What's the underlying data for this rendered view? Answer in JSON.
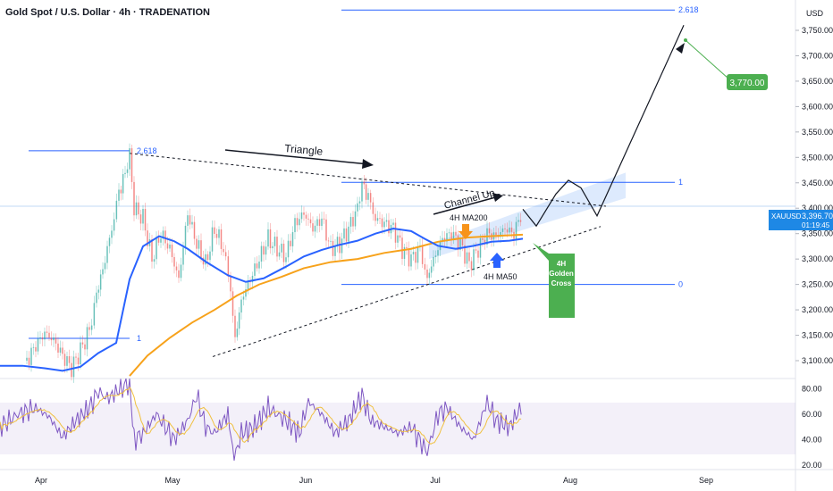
{
  "header": {
    "title": "Gold Spot / U.S. Dollar · 4h · TRADENATION",
    "currency": "USD"
  },
  "chart_data": {
    "type": "line",
    "price_axis": {
      "ylim": [
        3050,
        3810
      ],
      "ticks": [
        "3,100.00",
        "3,150.00",
        "3,200.00",
        "3,250.00",
        "3,300.00",
        "3,350.00",
        "3,400.00",
        "3,450.00",
        "3,500.00",
        "3,550.00",
        "3,600.00",
        "3,650.00",
        "3,700.00",
        "3,750.00"
      ]
    },
    "rsi_axis": {
      "ylim": [
        20,
        88
      ],
      "ticks": [
        "20.00",
        "40.00",
        "60.00",
        "80.00"
      ]
    },
    "x_ticks": [
      "Apr",
      "May",
      "Jun",
      "Jul",
      "Aug",
      "Sep"
    ],
    "symbol": {
      "label": "XAUUSD",
      "price": "3,396.70",
      "countdown": "01:19:45"
    },
    "fib_left": {
      "levels": [
        {
          "label": "2.618",
          "price": 3513
        },
        {
          "label": "1",
          "price": 3144
        }
      ]
    },
    "fib_right": {
      "levels": [
        {
          "label": "2.618",
          "price": 3790
        },
        {
          "label": "1",
          "price": 3451
        },
        {
          "label": "0",
          "price": 3250
        }
      ]
    },
    "annotations": {
      "triangle": "Triangle",
      "channel_up": "Channel Up",
      "ma200": "4H MA200",
      "ma50": "4H MA50",
      "golden_cross_1": "4H",
      "golden_cross_2": "Golden",
      "golden_cross_3": "Cross",
      "target": "3,770.00"
    },
    "series": [
      {
        "name": "4H MA50",
        "color": "#2962ff"
      },
      {
        "name": "4H MA200",
        "color": "#f7a21b"
      }
    ],
    "ma50_points": [
      [
        0,
        3090
      ],
      [
        25,
        3090
      ],
      [
        50,
        3085
      ],
      [
        70,
        3080
      ],
      [
        90,
        3088
      ],
      [
        110,
        3115
      ],
      [
        130,
        3135
      ],
      [
        145,
        3260
      ],
      [
        160,
        3325
      ],
      [
        178,
        3345
      ],
      [
        195,
        3335
      ],
      [
        210,
        3320
      ],
      [
        230,
        3295
      ],
      [
        255,
        3268
      ],
      [
        275,
        3255
      ],
      [
        295,
        3262
      ],
      [
        320,
        3285
      ],
      [
        340,
        3305
      ],
      [
        360,
        3318
      ],
      [
        380,
        3328
      ],
      [
        400,
        3336
      ],
      [
        420,
        3350
      ],
      [
        440,
        3360
      ],
      [
        460,
        3355
      ],
      [
        475,
        3340
      ],
      [
        490,
        3326
      ],
      [
        510,
        3320
      ],
      [
        530,
        3326
      ],
      [
        550,
        3334
      ],
      [
        570,
        3336
      ],
      [
        585,
        3340
      ]
    ],
    "ma200_points": [
      [
        145,
        3070
      ],
      [
        165,
        3110
      ],
      [
        190,
        3145
      ],
      [
        215,
        3175
      ],
      [
        240,
        3200
      ],
      [
        265,
        3228
      ],
      [
        290,
        3250
      ],
      [
        315,
        3265
      ],
      [
        340,
        3282
      ],
      [
        370,
        3294
      ],
      [
        400,
        3300
      ],
      [
        430,
        3312
      ],
      [
        460,
        3320
      ],
      [
        490,
        3334
      ],
      [
        520,
        3342
      ],
      [
        550,
        3345
      ],
      [
        585,
        3348
      ]
    ],
    "candle_path": [
      [
        30,
        3100
      ],
      [
        40,
        3130
      ],
      [
        50,
        3155
      ],
      [
        60,
        3140
      ],
      [
        70,
        3110
      ],
      [
        80,
        3085
      ],
      [
        90,
        3120
      ],
      [
        100,
        3160
      ],
      [
        108,
        3230
      ],
      [
        115,
        3280
      ],
      [
        125,
        3360
      ],
      [
        133,
        3430
      ],
      [
        140,
        3470
      ],
      [
        145,
        3505
      ],
      [
        150,
        3400
      ],
      [
        160,
        3380
      ],
      [
        170,
        3300
      ],
      [
        180,
        3350
      ],
      [
        190,
        3320
      ],
      [
        200,
        3260
      ],
      [
        210,
        3390
      ],
      [
        220,
        3330
      ],
      [
        230,
        3290
      ],
      [
        240,
        3360
      ],
      [
        250,
        3320
      ],
      [
        258,
        3240
      ],
      [
        263,
        3140
      ],
      [
        270,
        3220
      ],
      [
        280,
        3260
      ],
      [
        290,
        3300
      ],
      [
        300,
        3340
      ],
      [
        310,
        3320
      ],
      [
        320,
        3305
      ],
      [
        330,
        3370
      ],
      [
        340,
        3390
      ],
      [
        350,
        3360
      ],
      [
        360,
        3380
      ],
      [
        370,
        3320
      ],
      [
        380,
        3330
      ],
      [
        390,
        3360
      ],
      [
        400,
        3400
      ],
      [
        405,
        3450
      ],
      [
        412,
        3420
      ],
      [
        420,
        3380
      ],
      [
        430,
        3370
      ],
      [
        440,
        3360
      ],
      [
        450,
        3320
      ],
      [
        460,
        3300
      ],
      [
        470,
        3320
      ],
      [
        478,
        3260
      ],
      [
        485,
        3300
      ],
      [
        495,
        3340
      ],
      [
        505,
        3350
      ],
      [
        515,
        3330
      ],
      [
        525,
        3290
      ],
      [
        535,
        3320
      ],
      [
        545,
        3350
      ],
      [
        555,
        3345
      ],
      [
        565,
        3360
      ],
      [
        575,
        3350
      ],
      [
        585,
        3400
      ]
    ],
    "rsi_points": [
      [
        0,
        50
      ],
      [
        20,
        60
      ],
      [
        40,
        65
      ],
      [
        55,
        58
      ],
      [
        70,
        42
      ],
      [
        85,
        55
      ],
      [
        100,
        65
      ],
      [
        110,
        78
      ],
      [
        120,
        72
      ],
      [
        135,
        80
      ],
      [
        145,
        85
      ],
      [
        150,
        40
      ],
      [
        160,
        45
      ],
      [
        175,
        60
      ],
      [
        185,
        50
      ],
      [
        195,
        40
      ],
      [
        210,
        55
      ],
      [
        220,
        75
      ],
      [
        230,
        50
      ],
      [
        240,
        45
      ],
      [
        255,
        60
      ],
      [
        262,
        25
      ],
      [
        270,
        45
      ],
      [
        285,
        50
      ],
      [
        300,
        65
      ],
      [
        320,
        55
      ],
      [
        335,
        45
      ],
      [
        345,
        70
      ],
      [
        360,
        60
      ],
      [
        375,
        45
      ],
      [
        390,
        55
      ],
      [
        405,
        75
      ],
      [
        415,
        55
      ],
      [
        430,
        50
      ],
      [
        445,
        45
      ],
      [
        460,
        50
      ],
      [
        478,
        30
      ],
      [
        490,
        60
      ],
      [
        500,
        65
      ],
      [
        515,
        50
      ],
      [
        530,
        40
      ],
      [
        545,
        70
      ],
      [
        555,
        55
      ],
      [
        570,
        50
      ],
      [
        585,
        68
      ]
    ],
    "projection": [
      [
        585,
        3398
      ],
      [
        600,
        3365
      ],
      [
        622,
        3428
      ],
      [
        636,
        3455
      ],
      [
        650,
        3440
      ],
      [
        668,
        3385
      ],
      [
        765,
        3760
      ]
    ]
  }
}
